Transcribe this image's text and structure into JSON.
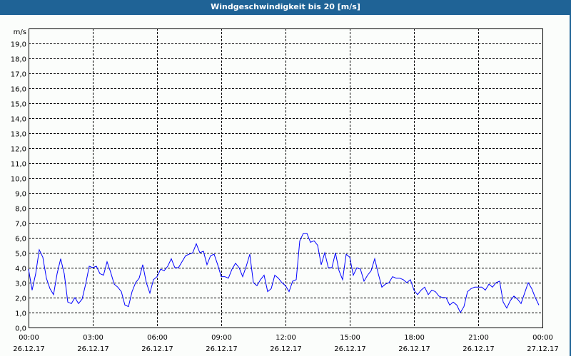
{
  "chart_data": {
    "type": "line",
    "title": "Windgeschwindigkeit bis 20 [m/s]",
    "ylabel": "m/s",
    "xlabel": "",
    "ylim": [
      0,
      20
    ],
    "xlim_hours": [
      0,
      24
    ],
    "sample_interval_minutes": 10,
    "grid": true,
    "line_color": "#0000ff",
    "y_ticks": [
      "0,0",
      "1,0",
      "2,0",
      "3,0",
      "4,0",
      "5,0",
      "6,0",
      "7,0",
      "8,0",
      "9,0",
      "10,0",
      "11,0",
      "12,0",
      "13,0",
      "14,0",
      "15,0",
      "16,0",
      "17,0",
      "18,0",
      "19,0"
    ],
    "x_ticks": [
      {
        "time": "00:00",
        "date": "26.12.17"
      },
      {
        "time": "03:00",
        "date": "26.12.17"
      },
      {
        "time": "06:00",
        "date": "26.12.17"
      },
      {
        "time": "09:00",
        "date": "26.12.17"
      },
      {
        "time": "12:00",
        "date": "26.12.17"
      },
      {
        "time": "15:00",
        "date": "26.12.17"
      },
      {
        "time": "18:00",
        "date": "26.12.17"
      },
      {
        "time": "21:00",
        "date": "26.12.17"
      },
      {
        "time": "00:00",
        "date": "27.12.17"
      }
    ],
    "series": [
      {
        "name": "Windgeschwindigkeit",
        "values": [
          3.9,
          2.5,
          3.6,
          5.2,
          4.7,
          3.3,
          2.6,
          2.2,
          3.6,
          4.6,
          3.6,
          1.7,
          1.6,
          2.0,
          1.6,
          1.9,
          2.9,
          4.1,
          4.0,
          4.1,
          3.6,
          3.5,
          4.4,
          3.7,
          2.9,
          2.7,
          2.4,
          1.5,
          1.4,
          2.4,
          3.0,
          3.3,
          4.2,
          3.0,
          2.3,
          3.2,
          3.4,
          3.9,
          3.8,
          4.1,
          4.6,
          4.0,
          4.0,
          4.4,
          4.8,
          4.9,
          5.0,
          5.6,
          5.0,
          5.1,
          4.2,
          4.8,
          4.9,
          4.2,
          3.4,
          3.4,
          3.3,
          3.9,
          4.3,
          4.0,
          3.4,
          4.1,
          4.9,
          3.0,
          2.8,
          3.2,
          3.5,
          2.4,
          2.6,
          3.5,
          3.3,
          3.0,
          2.8,
          2.4,
          3.1,
          3.2,
          5.8,
          6.3,
          6.3,
          5.7,
          5.8,
          5.5,
          4.2,
          5.0,
          4.0,
          4.0,
          5.0,
          3.8,
          3.2,
          4.9,
          4.7,
          3.5,
          4.0,
          3.9,
          3.1,
          3.5,
          3.8,
          4.6,
          3.6,
          2.7,
          2.9,
          3.0,
          3.4,
          3.3,
          3.3,
          3.2,
          3.0,
          3.2,
          2.5,
          2.2,
          2.5,
          2.7,
          2.2,
          2.5,
          2.4,
          2.1,
          2.0,
          2.0,
          1.5,
          1.7,
          1.5,
          1.0,
          1.4,
          2.4,
          2.6,
          2.7,
          2.7,
          2.7,
          2.5,
          2.9,
          2.7,
          3.0,
          3.1,
          1.7,
          1.3,
          1.8,
          2.1,
          1.9,
          1.6,
          2.3,
          3.0,
          2.6,
          2.0,
          1.5
        ]
      }
    ]
  }
}
